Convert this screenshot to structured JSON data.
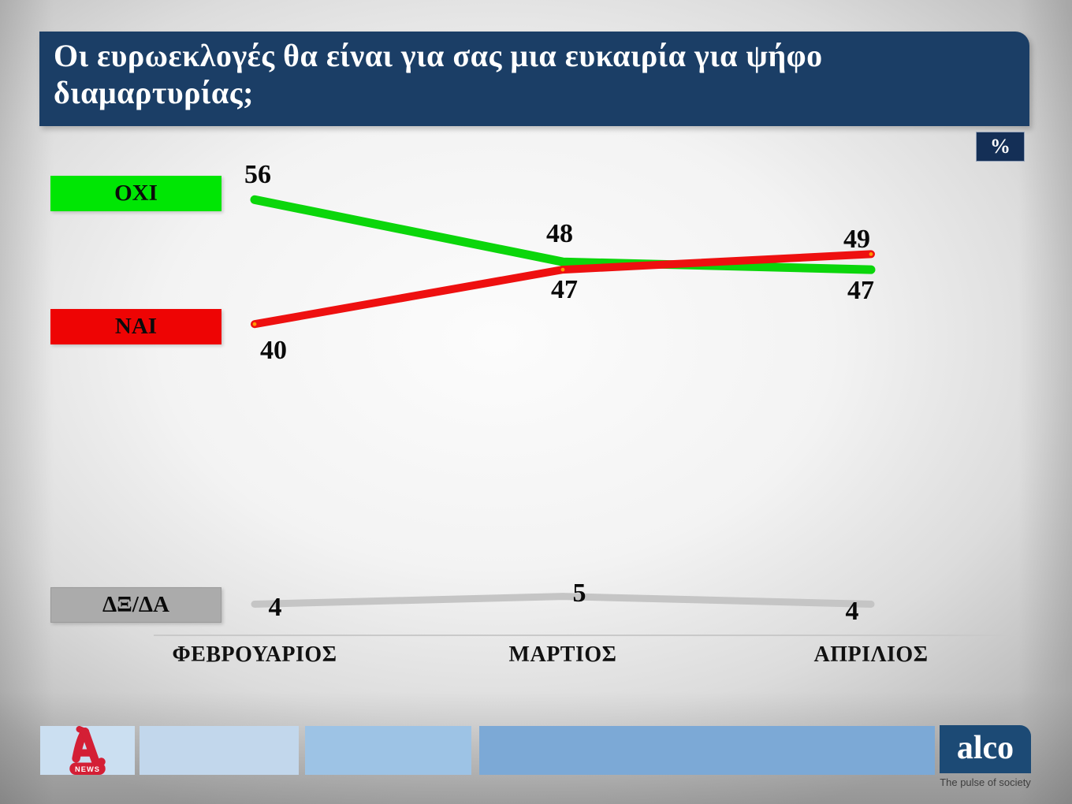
{
  "header": {
    "title": "Οι ευρωεκλογές θα είναι για σας μια ευκαιρία για ψήφο διαμαρτυρίας;",
    "unit_badge": "%"
  },
  "chart_data": {
    "type": "line",
    "title": "Οι ευρωεκλογές θα είναι για σας μια ευκαιρία για ψήφο διαμαρτυρίας;",
    "unit": "%",
    "categories": [
      "ΦΕΒΡΟΥΑΡΙΟΣ",
      "ΜΑΡΤΙΟΣ",
      "ΑΠΡΙΛΙΟΣ"
    ],
    "series": [
      {
        "name": "ΟΧΙ",
        "values": [
          56,
          48,
          47
        ],
        "color": "#0bd60b",
        "legend_color": "#00e604"
      },
      {
        "name": "ΝΑΙ",
        "values": [
          40,
          47,
          49
        ],
        "color": "#ee1010",
        "legend_color": "#ee0404",
        "marker_color": "#ff9900"
      },
      {
        "name": "ΔΞ/ΔΑ",
        "values": [
          4,
          5,
          4
        ],
        "color": "#c5c5c5",
        "legend_color": "#ababab"
      }
    ],
    "ylim": [
      0,
      60
    ],
    "grid": false,
    "legend_position": "left"
  },
  "footer": {
    "channel_logo": {
      "news_label": "NEWS"
    },
    "alco": {
      "logo_text": "alco",
      "tagline": "The pulse of society"
    }
  },
  "colors": {
    "title_bg": "#1b3e66",
    "badge_bg": "#142f56",
    "alco_bg": "#1c4a75",
    "alpha_red": "#d41f35",
    "axis_line": "#c9c9c9",
    "footer_bars": [
      "#cbdff1",
      "#c2d7ec",
      "#9dc3e5",
      "#7ca9d6"
    ]
  }
}
